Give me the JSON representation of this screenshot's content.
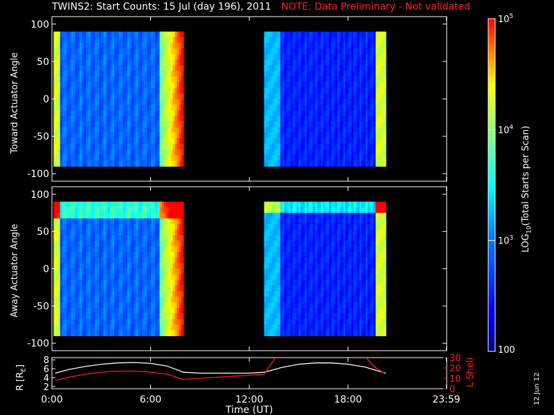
{
  "title": {
    "main": "TWINS2: Start Counts: 15 Jul (day 196), 2011",
    "note": "NOTE: Data Preliminary - Not validated"
  },
  "timestamp": "12 Jun 12",
  "chart_data": [
    {
      "type": "heatmap",
      "panel": "toward",
      "ylabel": "Toward Actuator Angle",
      "ylim": [
        -110,
        110
      ],
      "yticks": [
        "100",
        "50",
        "0",
        "-50",
        "-100"
      ],
      "xlim": [
        0,
        24
      ],
      "data_blocks": [
        {
          "x_start": 0.1,
          "x_end": 8.0,
          "y_start": -90,
          "y_end": 90
        },
        {
          "x_start": 12.9,
          "x_end": 20.3,
          "y_start": -90,
          "y_end": 90
        }
      ]
    },
    {
      "type": "heatmap",
      "panel": "away",
      "ylabel": "Away Actuator Angle",
      "ylim": [
        -110,
        110
      ],
      "yticks": [
        "100",
        "50",
        "0",
        "-50",
        "-100"
      ],
      "xlim": [
        0,
        24
      ],
      "data_blocks": [
        {
          "x_start": 0.1,
          "x_end": 8.0,
          "y_start": -90,
          "y_end": 90
        },
        {
          "x_start": 12.9,
          "x_end": 20.3,
          "y_start": -90,
          "y_end": 90
        }
      ]
    },
    {
      "type": "line",
      "panel": "orbit",
      "xlabel": "Time (UT)",
      "xticks": [
        "0:00",
        "6:00",
        "12:00",
        "18:00",
        "23:59"
      ],
      "ylabel_left": "R [R",
      "ylabel_left_sub": "E",
      "ylabel_left_close": "]",
      "yticks_left": [
        "8",
        "6",
        "4",
        "2"
      ],
      "ylim_left": [
        1.5,
        8.5
      ],
      "ylabel_right": "L Shell",
      "yticks_right": [
        "30",
        "20",
        "10",
        "0"
      ],
      "ylim_right": [
        0,
        30
      ],
      "series": [
        {
          "name": "R [RE]",
          "color": "#ffffff",
          "x": [
            0.2,
            1,
            2,
            3,
            4,
            5,
            6,
            7,
            8,
            9,
            10,
            11,
            12,
            12.9,
            14,
            15,
            16,
            17,
            18,
            19,
            20.3
          ],
          "y": [
            5.0,
            5.8,
            6.5,
            7.0,
            7.3,
            7.4,
            7.2,
            6.6,
            5.2,
            5.0,
            5.0,
            5.0,
            5.0,
            5.2,
            6.3,
            7.0,
            7.3,
            7.3,
            7.0,
            6.4,
            5.0
          ]
        },
        {
          "name": "L Shell",
          "color": "#ff1a1a",
          "x": [
            0.2,
            1,
            2,
            3,
            4,
            5,
            6,
            7,
            8,
            9,
            10,
            11,
            12,
            12.9,
            13.6
          ],
          "y": [
            8,
            11,
            14,
            16,
            17,
            17,
            16,
            14,
            9,
            10,
            11,
            12,
            13,
            14,
            31
          ]
        },
        {
          "name": "L Shell",
          "color": "#ff1a1a",
          "x": [
            19.1,
            19.7,
            20.3
          ],
          "y": [
            31,
            20,
            14
          ]
        }
      ]
    }
  ],
  "colorbar": {
    "label_prefix": "LOG",
    "label_sub": "10",
    "label_rest": "(Total Starts per Scan)",
    "ticks": [
      {
        "base": "10",
        "exp": "5"
      },
      {
        "base": "10",
        "exp": "4"
      },
      {
        "base": "10",
        "exp": "3"
      },
      {
        "base": "100",
        "exp": ""
      }
    ],
    "range_log": [
      2,
      5
    ]
  }
}
